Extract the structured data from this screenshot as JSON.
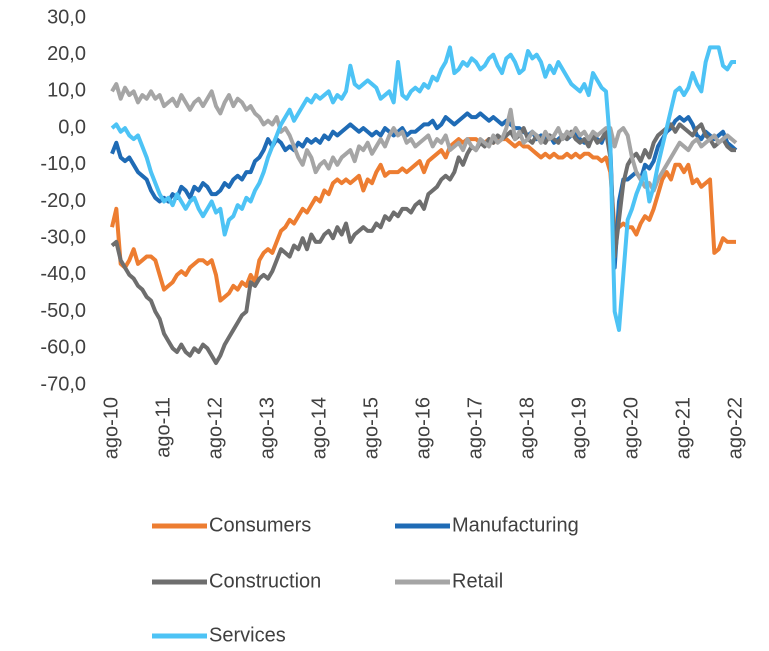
{
  "chart_data": {
    "type": "line",
    "categories": [
      "ago-10",
      null,
      null,
      null,
      null,
      null,
      null,
      null,
      null,
      null,
      null,
      null,
      "ago-11",
      null,
      null,
      null,
      null,
      null,
      null,
      null,
      null,
      null,
      null,
      null,
      "ago-12",
      null,
      null,
      null,
      null,
      null,
      null,
      null,
      null,
      null,
      null,
      null,
      "ago-13",
      null,
      null,
      null,
      null,
      null,
      null,
      null,
      null,
      null,
      null,
      null,
      "ago-14",
      null,
      null,
      null,
      null,
      null,
      null,
      null,
      null,
      null,
      null,
      null,
      "ago-15",
      null,
      null,
      null,
      null,
      null,
      null,
      null,
      null,
      null,
      null,
      null,
      "ago-16",
      null,
      null,
      null,
      null,
      null,
      null,
      null,
      null,
      null,
      null,
      null,
      "ago-17",
      null,
      null,
      null,
      null,
      null,
      null,
      null,
      null,
      null,
      null,
      null,
      "ago-18",
      null,
      null,
      null,
      null,
      null,
      null,
      null,
      null,
      null,
      null,
      null,
      "ago-19",
      null,
      null,
      null,
      null,
      null,
      null,
      null,
      null,
      null,
      null,
      null,
      "ago-20",
      null,
      null,
      null,
      null,
      null,
      null,
      null,
      null,
      null,
      null,
      null,
      "ago-21",
      null,
      null,
      null,
      null,
      null,
      null,
      null,
      null,
      null,
      null,
      null,
      "ago-22"
    ],
    "series": [
      {
        "name": "Consumers",
        "color": "#ED7D31",
        "values": [
          -27,
          -22,
          -37,
          -38,
          -36,
          -33,
          -37,
          -36,
          -35,
          -35,
          -36,
          -40,
          -44,
          -43,
          -42,
          -40,
          -39,
          -40,
          -38,
          -37,
          -36,
          -36,
          -37,
          -36,
          -40,
          -47,
          -46,
          -45,
          -43,
          -44,
          -42,
          -43,
          -40,
          -42,
          -36,
          -34,
          -33,
          -34,
          -31,
          -28,
          -27,
          -25,
          -26,
          -24,
          -22,
          -23,
          -21,
          -19,
          -20,
          -17,
          -18,
          -15,
          -14,
          -15,
          -14,
          -15,
          -14,
          -13,
          -17,
          -14,
          -15,
          -12,
          -10,
          -13,
          -12,
          -12,
          -12,
          -11,
          -12,
          -11,
          -10,
          -9,
          -12,
          -9,
          -8,
          -7,
          -6,
          -8,
          -5,
          -4,
          -3,
          -4,
          -3,
          -3,
          -3,
          -4,
          -4,
          -3,
          -4,
          -3,
          -3,
          -3,
          -4,
          -5,
          -4,
          -5,
          -5,
          -6,
          -7,
          -8,
          -7,
          -8,
          -7,
          -8,
          -8,
          -7,
          -8,
          -7,
          -8,
          -7,
          -7,
          -8,
          -8,
          -9,
          -8,
          -12,
          -28,
          -27,
          -26,
          -27,
          -27,
          -29,
          -26,
          -24,
          -25,
          -22,
          -18,
          -14,
          -12,
          -14,
          -10,
          -10,
          -12,
          -10,
          -15,
          -14,
          -16,
          -15,
          -14,
          -34,
          -33,
          -30,
          -31,
          -31,
          -31
        ]
      },
      {
        "name": "Manufacturing",
        "color": "#1F6BB5",
        "values": [
          -7,
          -4,
          -8,
          -9,
          -8,
          -10,
          -12,
          -13,
          -14,
          -17,
          -19,
          -20,
          -19,
          -20,
          -18,
          -19,
          -16,
          -17,
          -19,
          -16,
          -17,
          -15,
          -16,
          -18,
          -18,
          -17,
          -15,
          -16,
          -14,
          -13,
          -14,
          -12,
          -12,
          -9,
          -8,
          -6,
          -3,
          -5,
          -3,
          -4,
          -6,
          -5,
          -6,
          -4,
          -5,
          -3,
          -4,
          -3,
          -4,
          -2,
          -3,
          -1,
          -2,
          -1,
          0,
          1,
          0,
          -1,
          0,
          -1,
          -2,
          -1,
          -2,
          0,
          -1,
          -2,
          -1,
          0,
          -2,
          -1,
          -1,
          0,
          1,
          1,
          2,
          0,
          1,
          3,
          2,
          1,
          2,
          3,
          4,
          3,
          3,
          4,
          3,
          2,
          3,
          2,
          1,
          2,
          1,
          0,
          0,
          -1,
          -2,
          -1,
          -3,
          -2,
          -3,
          -2,
          -4,
          -3,
          -2,
          -3,
          -2,
          -1,
          -3,
          -4,
          -3,
          -2,
          -3,
          -4,
          -1,
          -5,
          -38,
          -20,
          -14,
          -14,
          -13,
          -12,
          -14,
          -10,
          -11,
          -9,
          -5,
          -3,
          -1,
          0,
          2,
          3,
          2,
          3,
          1,
          -2,
          -3,
          -1,
          -2,
          -3,
          -2,
          -1,
          -4,
          -5,
          -6
        ]
      },
      {
        "name": "Construction",
        "color": "#6E6E6E",
        "values": [
          -32,
          -31,
          -36,
          -38,
          -40,
          -41,
          -43,
          -44,
          -46,
          -47,
          -50,
          -52,
          -56,
          -58,
          -60,
          -61,
          -59,
          -61,
          -62,
          -60,
          -61,
          -59,
          -60,
          -62,
          -64,
          -62,
          -59,
          -57,
          -55,
          -53,
          -51,
          -50,
          -42,
          -43,
          -41,
          -40,
          -41,
          -39,
          -36,
          -33,
          -34,
          -35,
          -32,
          -33,
          -30,
          -33,
          -29,
          -31,
          -31,
          -29,
          -28,
          -30,
          -27,
          -29,
          -26,
          -31,
          -29,
          -28,
          -27,
          -28,
          -28,
          -26,
          -27,
          -24,
          -25,
          -23,
          -24,
          -22,
          -22,
          -23,
          -21,
          -20,
          -22,
          -18,
          -17,
          -16,
          -14,
          -13,
          -14,
          -12,
          -8,
          -10,
          -7,
          -5,
          -6,
          -4,
          -5,
          -3,
          -4,
          -2,
          -3,
          -2,
          -1,
          -3,
          -2,
          0,
          -3,
          -4,
          -2,
          -3,
          -4,
          -2,
          -3,
          -4,
          -2,
          -3,
          -1,
          -3,
          -4,
          -3,
          -5,
          -2,
          -4,
          -3,
          -1,
          -8,
          -35,
          -25,
          -15,
          -10,
          -8,
          -7,
          -9,
          -6,
          -8,
          -4,
          -2,
          -1,
          0,
          1,
          -1,
          1,
          0,
          -1,
          -2,
          0,
          1,
          -2,
          -3,
          -5,
          -4,
          -3,
          -5,
          -6,
          -6
        ]
      },
      {
        "name": "Retail",
        "color": "#A5A5A5",
        "values": [
          10,
          12,
          8,
          11,
          9,
          10,
          7,
          9,
          8,
          10,
          8,
          9,
          6,
          7,
          8,
          6,
          9,
          7,
          5,
          7,
          8,
          6,
          8,
          10,
          6,
          4,
          7,
          9,
          6,
          8,
          7,
          5,
          6,
          4,
          3,
          1,
          2,
          1,
          3,
          -1,
          0,
          -2,
          -5,
          -8,
          -10,
          -6,
          -8,
          -12,
          -10,
          -9,
          -11,
          -8,
          -10,
          -8,
          -7,
          -6,
          -9,
          -5,
          -6,
          -4,
          -7,
          -5,
          -3,
          -5,
          -2,
          0,
          -2,
          -1,
          -4,
          -3,
          -5,
          -4,
          -3,
          -2,
          -5,
          -3,
          -4,
          -2,
          -6,
          -5,
          -4,
          -6,
          -3,
          -5,
          -6,
          -3,
          -4,
          -5,
          -2,
          -4,
          -3,
          0,
          5,
          -3,
          -1,
          -4,
          -3,
          -1,
          -2,
          -4,
          -1,
          -3,
          -2,
          0,
          -3,
          -1,
          -2,
          0,
          -2,
          -1,
          -3,
          -1,
          -2,
          -1,
          0,
          0,
          -5,
          -1,
          0,
          -2,
          -8,
          -12,
          -14,
          -16,
          -15,
          -17,
          -14,
          -12,
          -10,
          -8,
          -6,
          -4,
          -5,
          -6,
          -4,
          -3,
          -5,
          -4,
          -3,
          -2,
          -4,
          -3,
          -2,
          -3,
          -4
        ]
      },
      {
        "name": "Services",
        "color": "#4DC3F5",
        "values": [
          0,
          1,
          -1,
          0,
          -2,
          -3,
          -2,
          -5,
          -8,
          -12,
          -15,
          -18,
          -20,
          -19,
          -21,
          -18,
          -20,
          -22,
          -20,
          -19,
          -22,
          -24,
          -22,
          -20,
          -23,
          -22,
          -29,
          -25,
          -24,
          -21,
          -22,
          -19,
          -20,
          -17,
          -15,
          -12,
          -8,
          -5,
          -2,
          1,
          3,
          5,
          2,
          4,
          6,
          8,
          7,
          9,
          8,
          9,
          10,
          7,
          9,
          8,
          10,
          17,
          12,
          11,
          12,
          13,
          12,
          11,
          8,
          9,
          10,
          7,
          18,
          9,
          8,
          10,
          11,
          10,
          12,
          11,
          14,
          13,
          16,
          18,
          22,
          15,
          16,
          18,
          17,
          19,
          18,
          16,
          17,
          19,
          20,
          17,
          15,
          19,
          20,
          18,
          15,
          16,
          21,
          19,
          20,
          18,
          14,
          17,
          15,
          18,
          16,
          14,
          12,
          11,
          10,
          12,
          9,
          15,
          13,
          11,
          10,
          -5,
          -50,
          -55,
          -40,
          -25,
          -22,
          -18,
          -15,
          -12,
          -20,
          -16,
          -10,
          -5,
          0,
          5,
          10,
          11,
          9,
          11,
          15,
          12,
          10,
          18,
          22,
          22,
          22,
          17,
          16,
          18,
          18
        ]
      }
    ],
    "ylim": [
      -70,
      30
    ],
    "yticks": [
      {
        "value": -70,
        "label": "-70,0"
      },
      {
        "value": -60,
        "label": "-60,0"
      },
      {
        "value": -50,
        "label": "-50,0"
      },
      {
        "value": -40,
        "label": "-40,0"
      },
      {
        "value": -30,
        "label": "-30,0"
      },
      {
        "value": -20,
        "label": "-20,0"
      },
      {
        "value": -10,
        "label": "-10,0"
      },
      {
        "value": 0,
        "label": "0,0"
      },
      {
        "value": 10,
        "label": "10,0"
      },
      {
        "value": 20,
        "label": "20,0"
      },
      {
        "value": 30,
        "label": "30,0"
      }
    ],
    "grid": false,
    "legend": "bottom"
  }
}
